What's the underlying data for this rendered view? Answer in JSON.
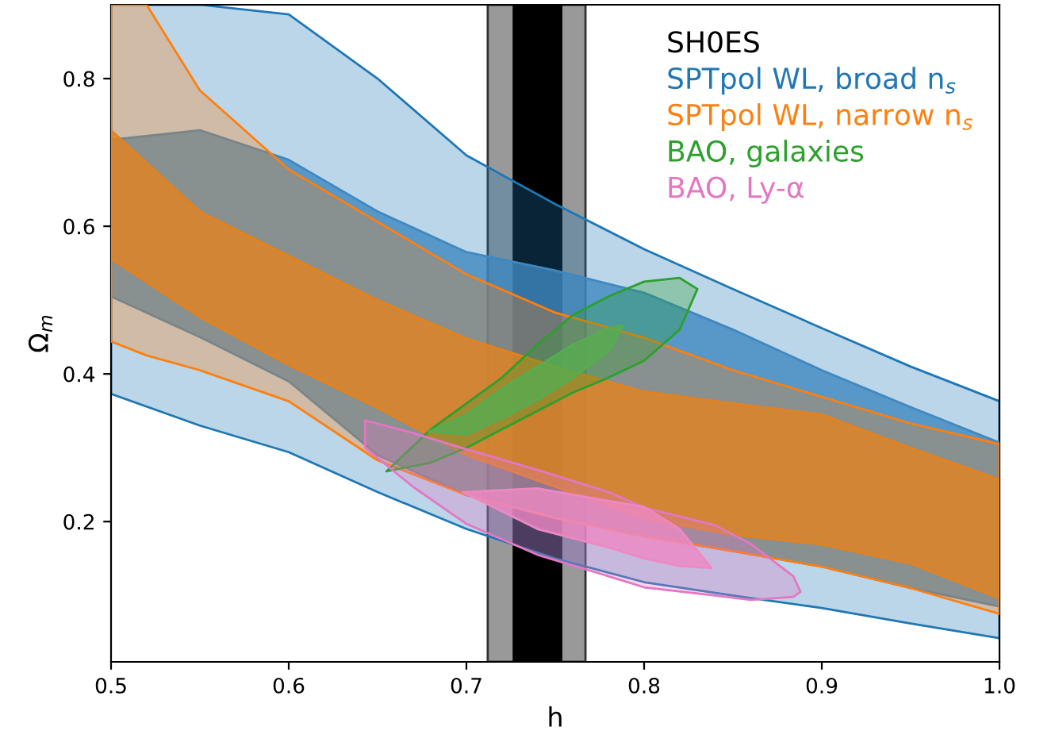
{
  "chart_data": {
    "type": "area",
    "xlabel": "h",
    "ylabel": "Ω$_{m}$",
    "xlim": [
      0.5,
      1.0
    ],
    "ylim": [
      0.01,
      0.9
    ],
    "xticks": [
      0.5,
      0.6,
      0.7,
      0.8,
      0.9,
      {
        "value": 1.0,
        "label": "1.0"
      }
    ],
    "yticks": [
      0.2,
      0.4,
      0.6,
      0.8
    ],
    "grid": false,
    "legend": "top right",
    "bands": [
      {
        "axis": "x",
        "from": 0.712,
        "to": 0.767,
        "label": "SH0ES",
        "color": "#999999"
      },
      {
        "axis": "x",
        "from": 0.726,
        "to": 0.754,
        "color": "#000000"
      }
    ],
    "series": [
      {
        "name": "SPTpol WL, broad n$_{s}$",
        "color": "#1f77b4",
        "x": [
          0.5,
          0.55,
          0.6,
          0.65,
          0.7,
          0.75,
          0.8,
          0.85,
          0.9,
          0.95,
          1.0
        ],
        "values": [
          null,
          null,
          null,
          null,
          null,
          null,
          null,
          null,
          null,
          null,
          null
        ],
        "lower": [
          0.373,
          0.33,
          0.294,
          0.24,
          0.19,
          0.15,
          0.118,
          0.1,
          0.083,
          0.062,
          0.042
        ],
        "upper": [
          0.9,
          0.9,
          0.887,
          0.8,
          0.696,
          0.63,
          0.569,
          0.515,
          0.462,
          0.41,
          0.363
        ]
      },
      {
        "color": "#3f88c0",
        "x": [
          0.5,
          0.55,
          0.6,
          0.65,
          0.7,
          0.75,
          0.8,
          0.85,
          0.9,
          0.95,
          1.0
        ],
        "values": [
          null,
          null,
          null,
          null,
          null,
          null,
          null,
          null,
          null,
          null,
          null
        ],
        "lower": [
          0.505,
          0.45,
          0.39,
          0.29,
          0.236,
          0.205,
          0.18,
          0.16,
          0.139,
          0.11,
          0.085
        ],
        "upper": [
          0.717,
          0.73,
          0.69,
          0.62,
          0.565,
          0.54,
          0.51,
          0.46,
          0.405,
          0.355,
          0.307
        ]
      },
      {
        "name": "SPTpol WL, narrow n$_{s}$",
        "color": "#ff7f0e",
        "x": [
          0.5,
          0.52,
          0.55,
          0.6,
          0.65,
          0.7,
          0.75,
          0.8,
          0.85,
          0.9,
          0.95,
          1.0
        ],
        "values": [
          null,
          null,
          null,
          null,
          null,
          null,
          null,
          null,
          null,
          null,
          null,
          null
        ],
        "lower": [
          0.444,
          0.425,
          0.405,
          0.363,
          0.283,
          0.236,
          0.205,
          0.18,
          0.16,
          0.139,
          0.11,
          0.075
        ],
        "upper": [
          0.9,
          0.9,
          0.784,
          0.677,
          0.606,
          0.535,
          0.483,
          0.449,
          0.405,
          0.369,
          0.333,
          0.305
        ]
      },
      {
        "color": "#e3821e",
        "x": [
          0.5,
          0.55,
          0.6,
          0.65,
          0.7,
          0.75,
          0.8,
          0.85,
          0.9,
          0.95,
          1.0
        ],
        "values": [
          null,
          null,
          null,
          null,
          null,
          null,
          null,
          null,
          null,
          null,
          null
        ],
        "lower": [
          0.556,
          0.477,
          0.412,
          0.354,
          0.29,
          0.247,
          0.204,
          0.182,
          0.169,
          0.143,
          0.096
        ],
        "upper": [
          0.73,
          0.62,
          0.56,
          0.5,
          0.448,
          0.41,
          0.376,
          0.36,
          0.345,
          0.3,
          0.257
        ]
      },
      {
        "name": "BAO, galaxies",
        "color": "#2ca02c",
        "x": [
          0.655,
          0.68,
          0.7,
          0.72,
          0.74,
          0.76,
          0.78,
          0.8,
          0.82,
          0.83
        ],
        "values": [
          null,
          null,
          null,
          null,
          null,
          null,
          null,
          null,
          null,
          null
        ],
        "lower": [
          0.268,
          0.28,
          0.3,
          0.325,
          0.35,
          0.375,
          0.395,
          0.418,
          0.46,
          0.515
        ],
        "upper": [
          0.268,
          0.325,
          0.36,
          0.395,
          0.44,
          0.48,
          0.505,
          0.525,
          0.53,
          0.515
        ]
      },
      {
        "color": "#56ad50",
        "x": [
          0.679,
          0.7,
          0.72,
          0.74,
          0.76,
          0.78,
          0.788
        ],
        "values": [
          null,
          null,
          null,
          null,
          null,
          null,
          null
        ],
        "lower": [
          0.322,
          0.318,
          0.34,
          0.365,
          0.395,
          0.43,
          0.466
        ],
        "upper": [
          0.322,
          0.345,
          0.38,
          0.41,
          0.44,
          0.462,
          0.466
        ]
      },
      {
        "name": "BAO, Ly-α",
        "color": "#e377c2",
        "x": [
          0.643,
          0.67,
          0.7,
          0.74,
          0.78,
          0.8,
          0.84,
          0.86,
          0.884,
          0.888
        ],
        "values": [
          null,
          null,
          null,
          null,
          null,
          null,
          null,
          null,
          null,
          null
        ],
        "lower": [
          0.3,
          0.247,
          0.197,
          0.155,
          0.126,
          0.111,
          0.1,
          0.094,
          0.098,
          0.105
        ],
        "upper": [
          0.337,
          0.32,
          0.298,
          0.27,
          0.24,
          0.219,
          0.195,
          0.17,
          0.126,
          0.105
        ]
      },
      {
        "color": "#ee88c3",
        "x": [
          0.698,
          0.74,
          0.78,
          0.8,
          0.82,
          0.838
        ],
        "values": [
          null,
          null,
          null,
          null,
          null,
          null
        ],
        "lower": [
          0.24,
          0.19,
          0.165,
          0.15,
          0.14,
          0.137
        ],
        "upper": [
          0.24,
          0.245,
          0.228,
          0.22,
          0.19,
          0.137
        ]
      }
    ]
  }
}
